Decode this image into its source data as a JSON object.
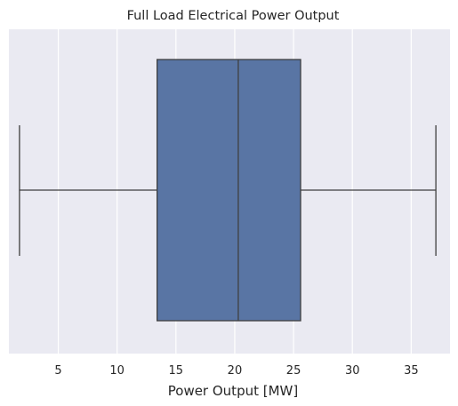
{
  "chart_data": {
    "type": "boxplot",
    "title": "Full Load Electrical Power Output",
    "xlabel": "Power Output [MW]",
    "ylabel": "",
    "orientation": "horizontal",
    "xlim": [
      0.8,
      38.3
    ],
    "xticks": [
      5,
      10,
      15,
      20,
      25,
      30,
      35
    ],
    "grid": true,
    "box": {
      "min": 1.7,
      "q1": 13.4,
      "median": 20.3,
      "q3": 25.6,
      "max": 37.1
    },
    "colors": {
      "background": "#eaeaf2",
      "grid": "#ffffff",
      "box_fill": "#5975a4",
      "line": "#3f3f3f"
    }
  }
}
